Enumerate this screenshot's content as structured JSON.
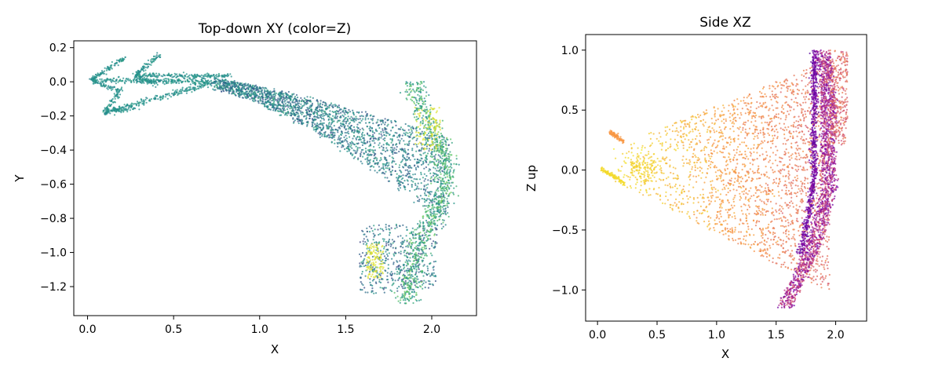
{
  "chart_data": [
    {
      "type": "scatter",
      "title": "Top-down XY (color=Z)",
      "xlabel": "X",
      "ylabel": "Y",
      "xlim": [
        -0.08,
        2.26
      ],
      "ylim": [
        -1.37,
        0.24
      ],
      "xticks": [
        0.0,
        0.5,
        1.0,
        1.5,
        2.0
      ],
      "xtick_labels": [
        "0.0",
        "0.5",
        "1.0",
        "1.5",
        "2.0"
      ],
      "yticks": [
        0.2,
        0.0,
        -0.2,
        -0.4,
        -0.6,
        -0.8,
        -1.0,
        -1.2
      ],
      "ytick_labels": [
        "0.2",
        "0.0",
        "−0.2",
        "−0.4",
        "−0.6",
        "−0.8",
        "−1.0",
        "−1.2"
      ],
      "grid": false,
      "colormap": "viridis",
      "color_by": "Z",
      "point_count_approx": 4000,
      "arrow_tips": [
        [
          0.02,
          0.01
        ],
        [
          0.28,
          0.04
        ],
        [
          0.1,
          -0.18
        ]
      ],
      "frame_front_x_range": [
        1.8,
        2.15
      ],
      "x": [
        0.02,
        0.1,
        0.2,
        0.28,
        0.35,
        0.5,
        0.7,
        0.9,
        1.1,
        1.3,
        1.5,
        1.7,
        1.85,
        1.95,
        2.0,
        2.05,
        2.1,
        0.1,
        0.3,
        0.5,
        0.7,
        0.9,
        1.1,
        1.3,
        1.5,
        1.7,
        1.9,
        2.0,
        2.05,
        1.6,
        1.7,
        1.8,
        1.9,
        2.0
      ],
      "y": [
        0.01,
        0.02,
        0.1,
        0.04,
        0.12,
        0.03,
        0.0,
        -0.03,
        -0.06,
        -0.12,
        -0.2,
        -0.3,
        -0.4,
        -0.5,
        -0.6,
        -0.7,
        -0.55,
        -0.18,
        -0.1,
        -0.05,
        -0.12,
        -0.25,
        -0.35,
        -0.45,
        -0.55,
        -0.7,
        -0.8,
        -0.9,
        -0.75,
        -0.9,
        -1.05,
        -1.2,
        -1.1,
        -0.95
      ]
    },
    {
      "type": "scatter",
      "title": "Side XZ",
      "xlabel": "X",
      "ylabel": "Z up",
      "xlim": [
        -0.1,
        2.26
      ],
      "ylim": [
        -1.26,
        1.13
      ],
      "xticks": [
        0.0,
        0.5,
        1.0,
        1.5,
        2.0
      ],
      "xtick_labels": [
        "0.0",
        "0.5",
        "1.0",
        "1.5",
        "2.0"
      ],
      "yticks": [
        1.0,
        0.5,
        0.0,
        -0.5,
        -1.0
      ],
      "ytick_labels": [
        "1.0",
        "0.5",
        "0.0",
        "−0.5",
        "−1.0"
      ],
      "grid": false,
      "colormap": "plasma",
      "point_count_approx": 4000,
      "arrow_tips": [
        [
          0.03,
          0.01
        ],
        [
          0.1,
          0.32
        ],
        [
          0.28,
          0.02
        ]
      ],
      "frame_arc_x_range": [
        1.5,
        2.15
      ],
      "x": [
        0.03,
        0.1,
        0.28,
        0.4,
        0.6,
        0.8,
        1.0,
        1.2,
        1.4,
        1.6,
        1.8,
        1.9,
        2.0,
        2.05,
        2.1,
        1.7,
        1.6,
        1.5,
        1.85,
        1.95
      ],
      "z": [
        0.01,
        0.32,
        0.02,
        0.1,
        0.05,
        -0.1,
        0.2,
        -0.3,
        0.4,
        -0.6,
        0.9,
        0.7,
        0.3,
        -0.2,
        0.6,
        -0.8,
        -1.0,
        -1.1,
        1.0,
        0.8
      ]
    }
  ]
}
